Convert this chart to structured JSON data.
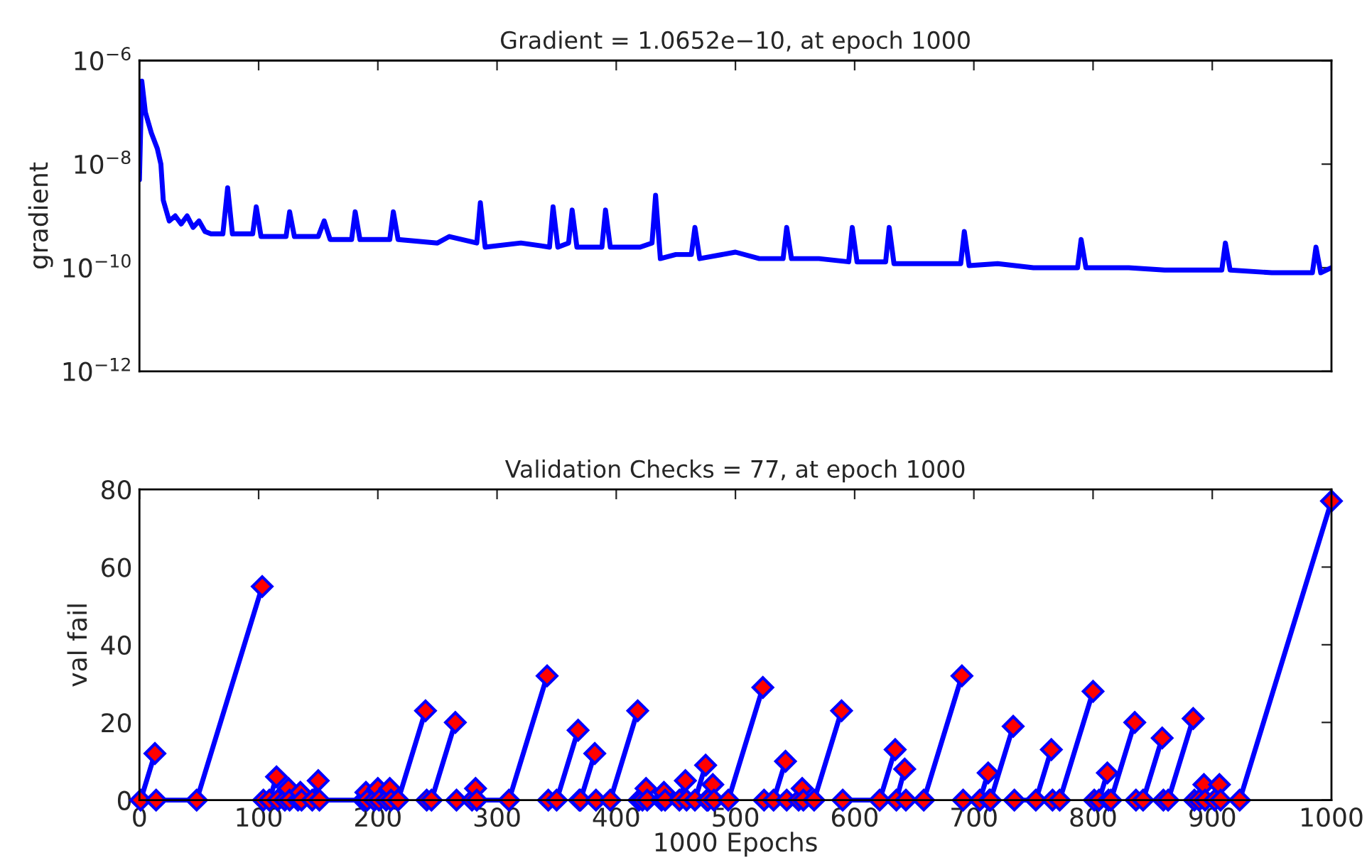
{
  "chart_data": [
    {
      "type": "line",
      "title": "Gradient = 1.0652e−10, at epoch 1000",
      "ylabel": "gradient",
      "log": "y",
      "grid": false,
      "line_style": "solid",
      "marker": "none",
      "tick_labels": "y",
      "xlim": [
        0,
        1000
      ],
      "xticks": [
        {
          "value": 0,
          "label": null
        },
        {
          "value": 100,
          "label": null
        },
        {
          "value": 200,
          "label": null
        },
        {
          "value": 300,
          "label": null
        },
        {
          "value": 400,
          "label": null
        },
        {
          "value": 500,
          "label": null
        },
        {
          "value": 600,
          "label": null
        },
        {
          "value": 700,
          "label": null
        },
        {
          "value": 800,
          "label": null
        },
        {
          "value": 900,
          "label": null
        },
        {
          "value": 1000,
          "label": null
        }
      ],
      "ylim": [
        1e-12,
        1e-06
      ],
      "yticks": [
        {
          "value": 1e-12,
          "label": "10$^{−12}$"
        },
        {
          "value": 1e-10,
          "label": "10$^{−10}$"
        },
        {
          "value": 1e-08,
          "label": "10$^{−8}$"
        },
        {
          "value": 1e-06,
          "label": "10$^{−6}$"
        }
      ],
      "series": [
        {
          "color": "#0000ff",
          "x": [
            0,
            2,
            5,
            10,
            15,
            18,
            20,
            25,
            30,
            35,
            40,
            45,
            50,
            55,
            60,
            70,
            74,
            78,
            95,
            98,
            102,
            123,
            126,
            130,
            150,
            155,
            160,
            178,
            181,
            185,
            210,
            213,
            217,
            250,
            260,
            283,
            286,
            290,
            320,
            344,
            347,
            351,
            360,
            363,
            367,
            388,
            391,
            395,
            420,
            430,
            433,
            437,
            450,
            463,
            466,
            470,
            500,
            520,
            540,
            543,
            547,
            570,
            595,
            598,
            602,
            626,
            629,
            633,
            660,
            689,
            692,
            696,
            720,
            750,
            787,
            790,
            794,
            830,
            860,
            908,
            911,
            915,
            950,
            984,
            987,
            991,
            1000
          ],
          "values": [
            5e-09,
            4e-07,
            1e-07,
            4e-08,
            2e-08,
            1e-08,
            2e-09,
            8e-10,
            1e-09,
            7e-10,
            1e-09,
            6e-10,
            8e-10,
            5e-10,
            4.5e-10,
            4.5e-10,
            3.5e-09,
            4.5e-10,
            4.5e-10,
            1.5e-09,
            4e-10,
            4e-10,
            1.2e-09,
            4e-10,
            4e-10,
            8e-10,
            3.5e-10,
            3.5e-10,
            1.2e-09,
            3.5e-10,
            3.5e-10,
            1.2e-09,
            3.5e-10,
            3e-10,
            4e-10,
            3e-10,
            1.8e-09,
            2.5e-10,
            3e-10,
            2.5e-10,
            1.5e-09,
            2.5e-10,
            3e-10,
            1.3e-09,
            2.5e-10,
            2.5e-10,
            1.3e-09,
            2.5e-10,
            2.5e-10,
            3e-10,
            2.5e-09,
            1.5e-10,
            1.8e-10,
            1.8e-10,
            6e-10,
            1.5e-10,
            2e-10,
            1.5e-10,
            1.5e-10,
            6e-10,
            1.5e-10,
            1.5e-10,
            1.3e-10,
            6e-10,
            1.3e-10,
            1.3e-10,
            6e-10,
            1.2e-10,
            1.2e-10,
            1.2e-10,
            5e-10,
            1.1e-10,
            1.2e-10,
            1e-10,
            1e-10,
            3.5e-10,
            1e-10,
            1e-10,
            9e-11,
            9e-11,
            3e-10,
            9e-11,
            8e-11,
            8e-11,
            2.5e-10,
            8e-11,
            1e-10
          ]
        }
      ]
    },
    {
      "type": "line",
      "title": "Validation Checks = 77, at epoch 1000",
      "ylabel": "val fail",
      "xlabel": "1000 Epochs",
      "grid": false,
      "line_style": "solid",
      "marker": "diamond",
      "xlim": [
        0,
        1000
      ],
      "xticks": [
        0,
        100,
        200,
        300,
        400,
        500,
        600,
        700,
        800,
        900,
        1000
      ],
      "ylim": [
        0,
        80
      ],
      "yticks": [
        0,
        20,
        40,
        60,
        80
      ],
      "series": [
        {
          "color": "#0000ff",
          "x": [
            1,
            13,
            null,
            14,
            48,
            103,
            null,
            104,
            109,
            115,
            null,
            116,
            122,
            125,
            null,
            126,
            133,
            135,
            null,
            136,
            145,
            150,
            null,
            151,
            188,
            190,
            null,
            191,
            197,
            200,
            null,
            201,
            207,
            210,
            null,
            211,
            217,
            240,
            null,
            241,
            245,
            265,
            null,
            266,
            279,
            282,
            null,
            283,
            310,
            342,
            null,
            343,
            350,
            368,
            null,
            369,
            370,
            382,
            null,
            383,
            395,
            418,
            null,
            419,
            422,
            425,
            null,
            426,
            438,
            440,
            null,
            441,
            453,
            458,
            null,
            459,
            466,
            475,
            null,
            476,
            477,
            481,
            null,
            482,
            494,
            523,
            null,
            524,
            532,
            542,
            null,
            543,
            553,
            556,
            null,
            557,
            566,
            589,
            null,
            590,
            621,
            634,
            null,
            635,
            642,
            null,
            643,
            658,
            690,
            null,
            691,
            705,
            712,
            null,
            713,
            714,
            733,
            null,
            734,
            752,
            765,
            null,
            766,
            772,
            800,
            null,
            801,
            805,
            812,
            null,
            813,
            815,
            835,
            null,
            836,
            842,
            858,
            null,
            859,
            863,
            884,
            null,
            885,
            889,
            893,
            null,
            894,
            902,
            906,
            null,
            907,
            923,
            1000
          ],
          "values": [
            0,
            12,
            null,
            0,
            0,
            55,
            null,
            0,
            0,
            6,
            null,
            0,
            0,
            3,
            null,
            0,
            0,
            2,
            null,
            0,
            0,
            5,
            null,
            0,
            0,
            2,
            null,
            0,
            0,
            3,
            null,
            0,
            0,
            3,
            null,
            0,
            0,
            23,
            null,
            0,
            0,
            20,
            null,
            0,
            0,
            3,
            null,
            0,
            0,
            32,
            null,
            0,
            0,
            18,
            null,
            0,
            0,
            12,
            null,
            0,
            0,
            23,
            null,
            0,
            0,
            3,
            null,
            0,
            0,
            2,
            null,
            0,
            0,
            5,
            null,
            0,
            0,
            9,
            null,
            0,
            0,
            4,
            null,
            0,
            0,
            29,
            null,
            0,
            0,
            10,
            null,
            0,
            0,
            3,
            null,
            0,
            0,
            23,
            null,
            0,
            0,
            13,
            null,
            0,
            8,
            null,
            0,
            0,
            32,
            null,
            0,
            0,
            7,
            null,
            0,
            0,
            19,
            null,
            0,
            0,
            13,
            null,
            0,
            0,
            28,
            null,
            0,
            0,
            7,
            null,
            0,
            0,
            20,
            null,
            0,
            0,
            16,
            null,
            0,
            0,
            21,
            null,
            0,
            0,
            4,
            null,
            0,
            0,
            4,
            null,
            0,
            0,
            77
          ]
        }
      ]
    }
  ]
}
